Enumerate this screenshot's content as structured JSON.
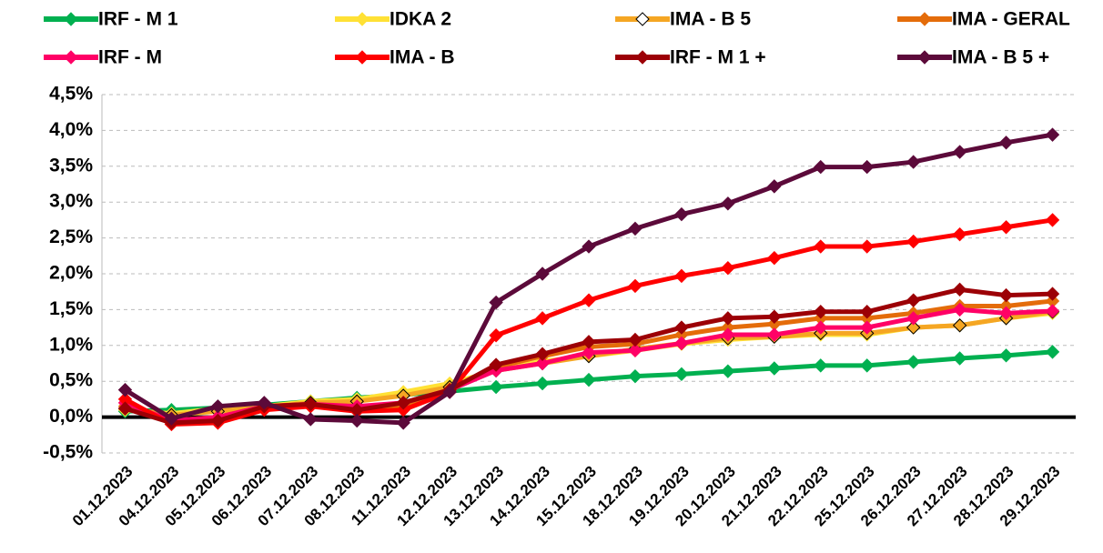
{
  "chart_data": {
    "type": "line",
    "categories": [
      "01.12.2023",
      "04.12.2023",
      "05.12.2023",
      "06.12.2023",
      "07.12.2023",
      "08.12.2023",
      "11.12.2023",
      "12.12.2023",
      "13.12.2023",
      "14.12.2023",
      "15.12.2023",
      "18.12.2023",
      "19.12.2023",
      "20.12.2023",
      "21.12.2023",
      "22.12.2023",
      "25.12.2023",
      "26.12.2023",
      "27.12.2023",
      "28.12.2023",
      "29.12.2023"
    ],
    "series": [
      {
        "name": "IRF - M 1",
        "color": "#00b050",
        "values": [
          0.08,
          0.1,
          0.13,
          0.17,
          0.22,
          0.27,
          0.31,
          0.36,
          0.42,
          0.47,
          0.52,
          0.57,
          0.6,
          0.64,
          0.68,
          0.72,
          0.72,
          0.77,
          0.82,
          0.86,
          0.91
        ]
      },
      {
        "name": "IDKA 2",
        "color": "#ffe135",
        "values": [
          0.1,
          0.05,
          0.12,
          0.15,
          0.22,
          0.25,
          0.35,
          0.47,
          0.65,
          0.78,
          0.85,
          0.93,
          1.02,
          1.08,
          1.12,
          1.15,
          1.15,
          1.25,
          1.28,
          1.38,
          1.45
        ]
      },
      {
        "name": "IMA - B 5",
        "color": "#f5a623",
        "marker_edge": "#000000",
        "values": [
          0.12,
          0.03,
          0.08,
          0.14,
          0.2,
          0.22,
          0.3,
          0.42,
          0.65,
          0.75,
          0.85,
          0.95,
          1.03,
          1.1,
          1.12,
          1.17,
          1.17,
          1.25,
          1.28,
          1.38,
          1.47
        ]
      },
      {
        "name": "IMA - GERAL",
        "color": "#e46c0a",
        "values": [
          0.15,
          -0.05,
          0.0,
          0.15,
          0.15,
          0.12,
          0.15,
          0.38,
          0.7,
          0.85,
          0.98,
          1.02,
          1.15,
          1.25,
          1.3,
          1.38,
          1.38,
          1.45,
          1.55,
          1.55,
          1.62
        ]
      },
      {
        "name": "IRF - M",
        "color": "#ff0066",
        "values": [
          0.2,
          -0.05,
          0.0,
          0.15,
          0.18,
          0.15,
          0.2,
          0.38,
          0.65,
          0.75,
          0.9,
          0.93,
          1.03,
          1.15,
          1.15,
          1.25,
          1.25,
          1.38,
          1.5,
          1.45,
          1.48
        ]
      },
      {
        "name": "IMA - B",
        "color": "#ff0000",
        "values": [
          0.25,
          -0.1,
          -0.08,
          0.1,
          0.15,
          0.08,
          0.1,
          0.35,
          1.14,
          1.38,
          1.63,
          1.83,
          1.97,
          2.08,
          2.22,
          2.38,
          2.38,
          2.45,
          2.55,
          2.65,
          2.75
        ]
      },
      {
        "name": "IRF - M 1 +",
        "color": "#9c0006",
        "values": [
          0.12,
          -0.08,
          -0.05,
          0.15,
          0.18,
          0.1,
          0.2,
          0.38,
          0.73,
          0.88,
          1.05,
          1.08,
          1.25,
          1.38,
          1.4,
          1.47,
          1.47,
          1.63,
          1.78,
          1.7,
          1.72
        ]
      },
      {
        "name": "IMA - B 5 +",
        "color": "#5c0a3a",
        "values": [
          0.38,
          -0.02,
          0.15,
          0.2,
          -0.03,
          -0.05,
          -0.08,
          0.35,
          1.6,
          2.0,
          2.38,
          2.63,
          2.83,
          2.98,
          3.22,
          3.49,
          3.49,
          3.56,
          3.7,
          3.83,
          3.94
        ]
      }
    ],
    "ylim": [
      -0.5,
      4.5
    ],
    "yticks": [
      {
        "value": -0.5,
        "label": "-0,5%"
      },
      {
        "value": 0,
        "label": "0,0%"
      },
      {
        "value": 0.5,
        "label": "0,5%"
      },
      {
        "value": 1,
        "label": "1,0%"
      },
      {
        "value": 1.5,
        "label": "1,5%"
      },
      {
        "value": 2,
        "label": "2,0%"
      },
      {
        "value": 2.5,
        "label": "2,5%"
      },
      {
        "value": 3,
        "label": "3,0%"
      },
      {
        "value": 3.5,
        "label": "3,5%"
      },
      {
        "value": 4,
        "label": "4,0%"
      },
      {
        "value": 4.5,
        "label": "4,5%"
      }
    ],
    "grid": true,
    "legend": "top"
  }
}
